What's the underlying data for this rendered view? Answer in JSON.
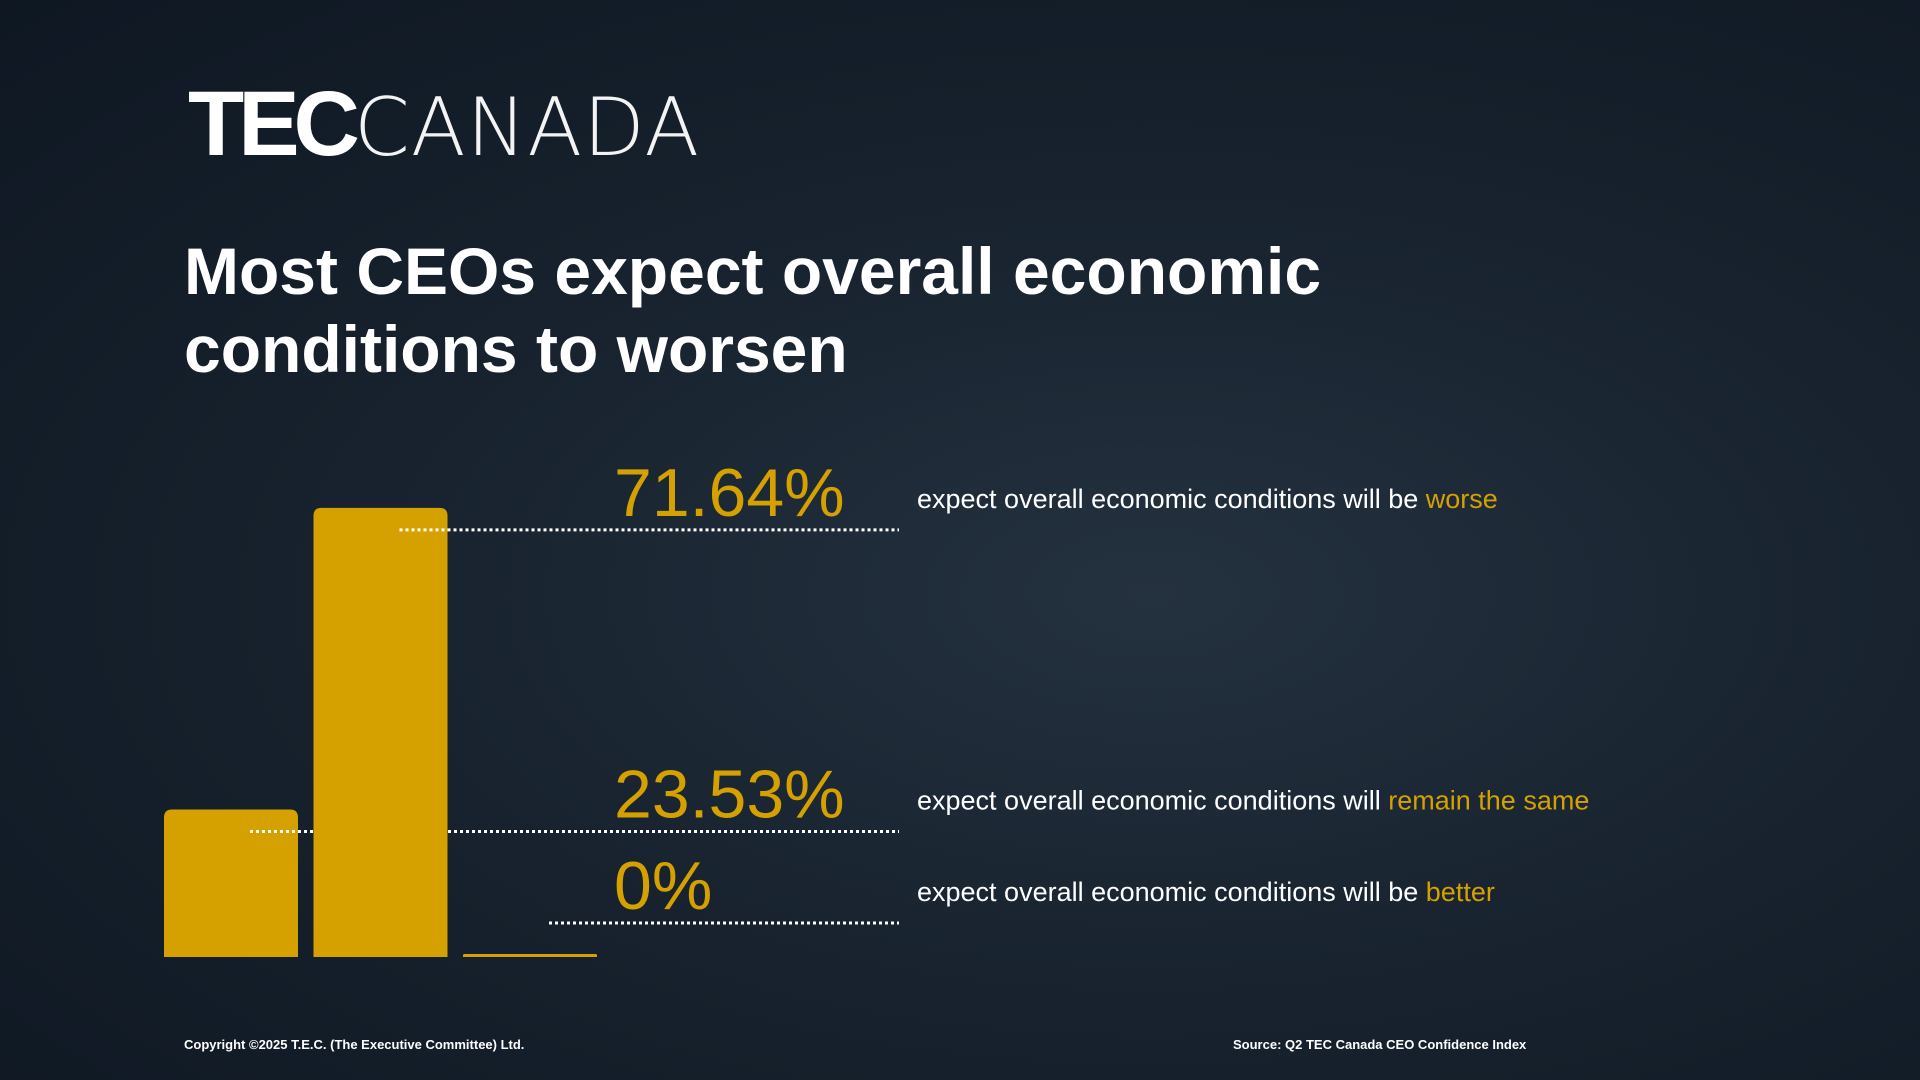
{
  "logo": {
    "bold": "TEC",
    "light": "CANADA"
  },
  "chart_data": {
    "type": "bar",
    "title": "Most CEOs expect overall economic conditions to worsen",
    "categories": [
      "remain the same",
      "worse",
      "better"
    ],
    "category_prefixes": [
      "expect overall economic conditions will",
      "expect overall economic conditions will be",
      "expect overall economic conditions will be"
    ],
    "values": [
      23.53,
      71.64,
      0
    ],
    "value_labels": [
      "23.53%",
      "71.64%",
      "0%"
    ],
    "color": "#d4a100"
  },
  "footer": {
    "copyright": "Copyright ©2025 T.E.C. (The Executive Committee) Ltd.",
    "source": "Source: Q2 TEC Canada CEO Confidence Index"
  }
}
